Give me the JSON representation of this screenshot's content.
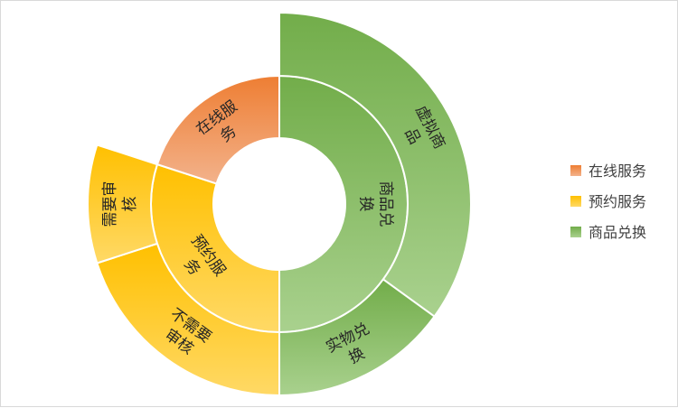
{
  "chart_data": {
    "type": "sunburst",
    "title": "",
    "legend": {
      "position": "right",
      "entries": [
        "在线服务",
        "预约服务",
        "商品兑换"
      ]
    },
    "colors": {
      "在线服务": [
        "#ee7e33",
        "#f3b28b"
      ],
      "预约服务": [
        "#ffc000",
        "#ffd966"
      ],
      "商品兑换": [
        "#72ad4a",
        "#a9d18e"
      ]
    },
    "inner_ring": [
      {
        "name": "商品兑换",
        "value": 50
      },
      {
        "name": "预约服务",
        "value": 30
      },
      {
        "name": "在线服务",
        "value": 20
      }
    ],
    "outer_ring": [
      {
        "name": "虚拟商品",
        "parent": "商品兑换",
        "value": 35
      },
      {
        "name": "实物兑换",
        "parent": "商品兑换",
        "value": 15
      },
      {
        "name": "不需要审核",
        "parent": "预约服务",
        "value": 20
      },
      {
        "name": "需要审核",
        "parent": "预约服务",
        "value": 10
      },
      {
        "name": "",
        "parent": "在线服务",
        "value": 20
      }
    ],
    "label_lines": {
      "商品兑换": [
        "商品兑",
        "换"
      ],
      "预约服务": [
        "预约服",
        "务"
      ],
      "在线服务": [
        "在线服",
        "务"
      ],
      "虚拟商品": [
        "虚拟商",
        "品"
      ],
      "实物兑换": [
        "实物兑",
        "换"
      ],
      "不需要审核": [
        "不需要",
        "审核"
      ],
      "需要审核": [
        "需要审",
        "核"
      ]
    }
  }
}
